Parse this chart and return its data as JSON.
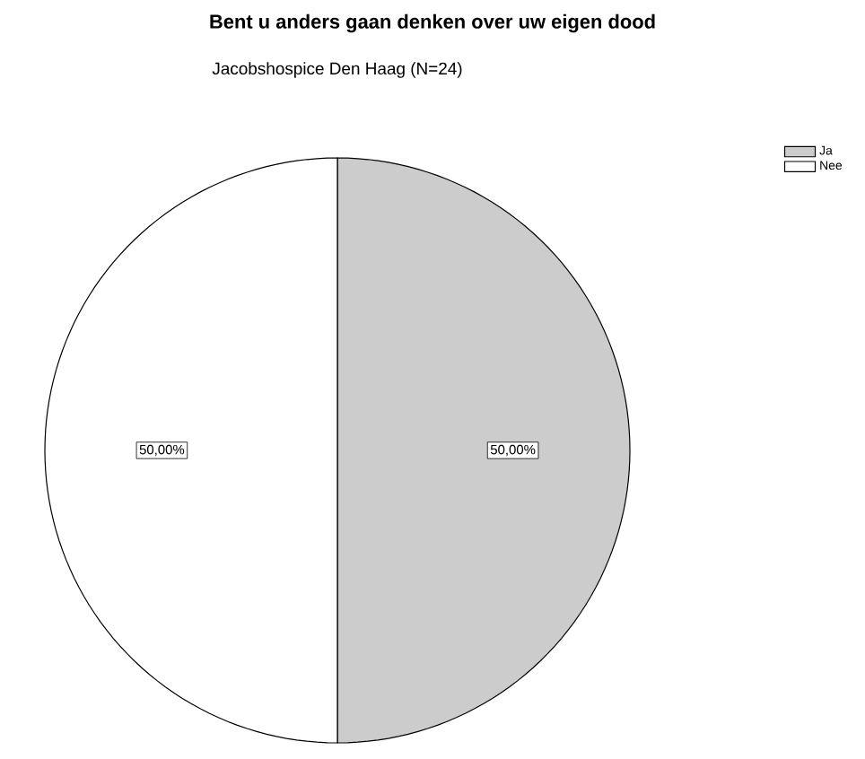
{
  "chart_data": {
    "type": "pie",
    "title": "Bent u anders gaan denken over uw eigen dood",
    "subtitle": "Jacobshospice Den Haag (N=24)",
    "categories": [
      "Ja",
      "Nee"
    ],
    "values": [
      50,
      50
    ],
    "colors": [
      "#cccccc",
      "#ffffff"
    ],
    "value_labels": [
      "50,00%",
      "50,00%"
    ],
    "legend": "top right"
  }
}
